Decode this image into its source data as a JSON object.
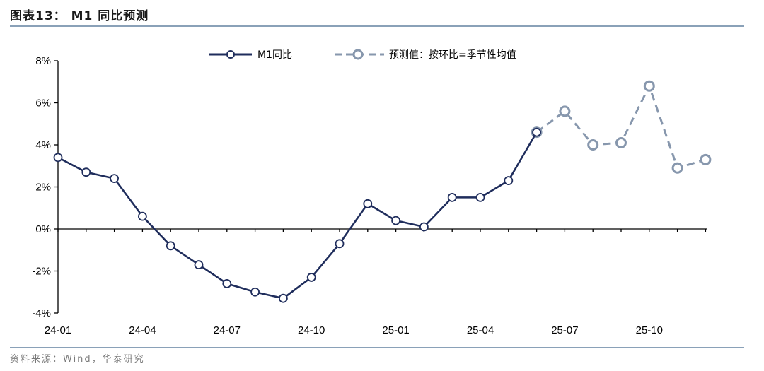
{
  "title": "图表13： M1 同比预测",
  "source": "资料来源：Wind，华泰研究",
  "colors": {
    "actual": "#1f2d5c",
    "forecast": "#8797ad",
    "axis": "#000000"
  },
  "chart_data": {
    "type": "line",
    "x": [
      "24-01",
      "24-02",
      "24-03",
      "24-04",
      "24-05",
      "24-06",
      "24-07",
      "24-08",
      "24-09",
      "24-10",
      "24-11",
      "24-12",
      "25-01",
      "25-02",
      "25-03",
      "25-04",
      "25-05",
      "25-06",
      "25-07",
      "25-08",
      "25-09",
      "25-10",
      "25-11",
      "25-12"
    ],
    "xticks": [
      "24-01",
      "24-04",
      "24-07",
      "24-10",
      "25-01",
      "25-04",
      "25-07",
      "25-10"
    ],
    "yticks": [
      "8%",
      "6%",
      "4%",
      "2%",
      "0%",
      "-2%",
      "-4%"
    ],
    "ylim": [
      -4,
      8
    ],
    "legend_position": "top",
    "series": [
      {
        "name": "M1同比",
        "style": "solid",
        "values": [
          3.4,
          2.7,
          2.4,
          0.6,
          -0.8,
          -1.7,
          -2.6,
          -3.0,
          -3.3,
          -2.3,
          -0.7,
          1.2,
          0.4,
          0.1,
          1.5,
          1.5,
          2.3,
          4.6,
          null,
          null,
          null,
          null,
          null,
          null
        ]
      },
      {
        "name": "预测值：按环比=季节性均值",
        "style": "dashed",
        "values": [
          null,
          null,
          null,
          null,
          null,
          null,
          null,
          null,
          null,
          null,
          null,
          null,
          null,
          null,
          null,
          null,
          null,
          4.6,
          5.6,
          4.0,
          4.1,
          6.8,
          2.9,
          3.3
        ]
      }
    ]
  }
}
